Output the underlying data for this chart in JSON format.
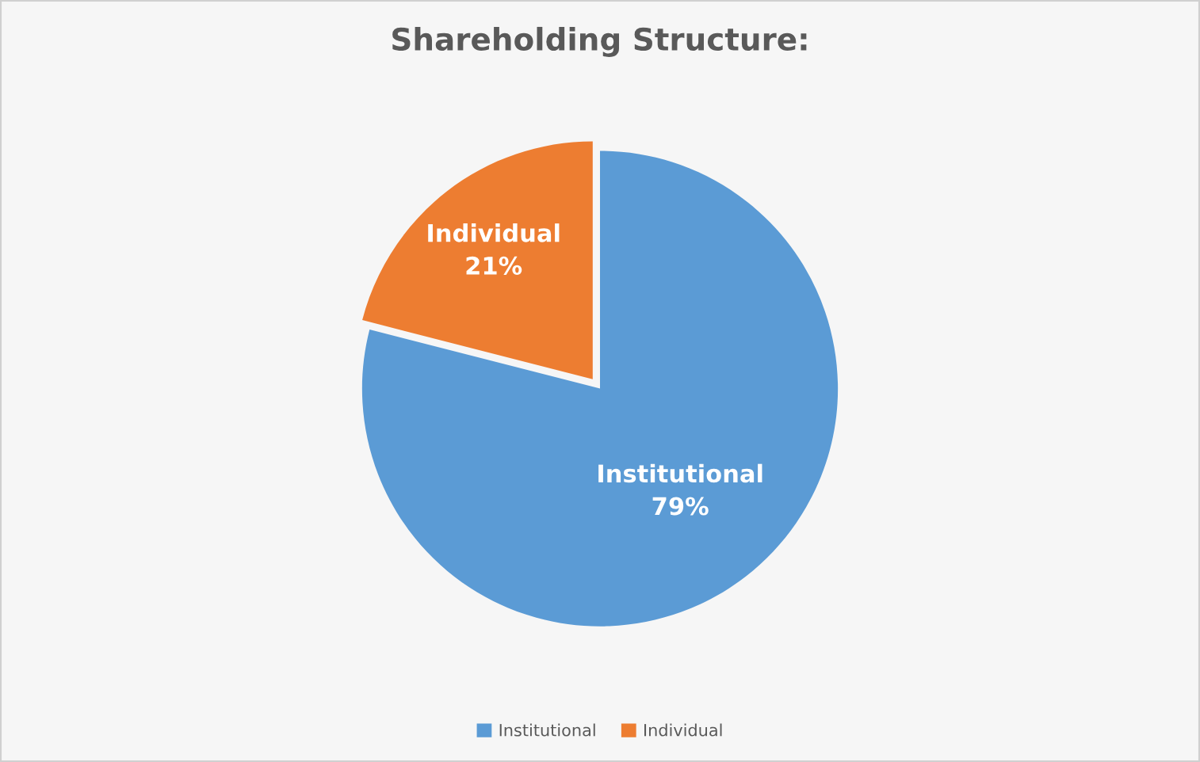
{
  "chart_data": {
    "type": "pie",
    "title": "Shareholding Structure:",
    "categories": [
      "Institutional",
      "Individual"
    ],
    "values": [
      79,
      21
    ],
    "value_labels": [
      "79%",
      "21%"
    ],
    "colors": [
      "#5b9bd5",
      "#ed7d31"
    ],
    "legend": "bottom"
  }
}
